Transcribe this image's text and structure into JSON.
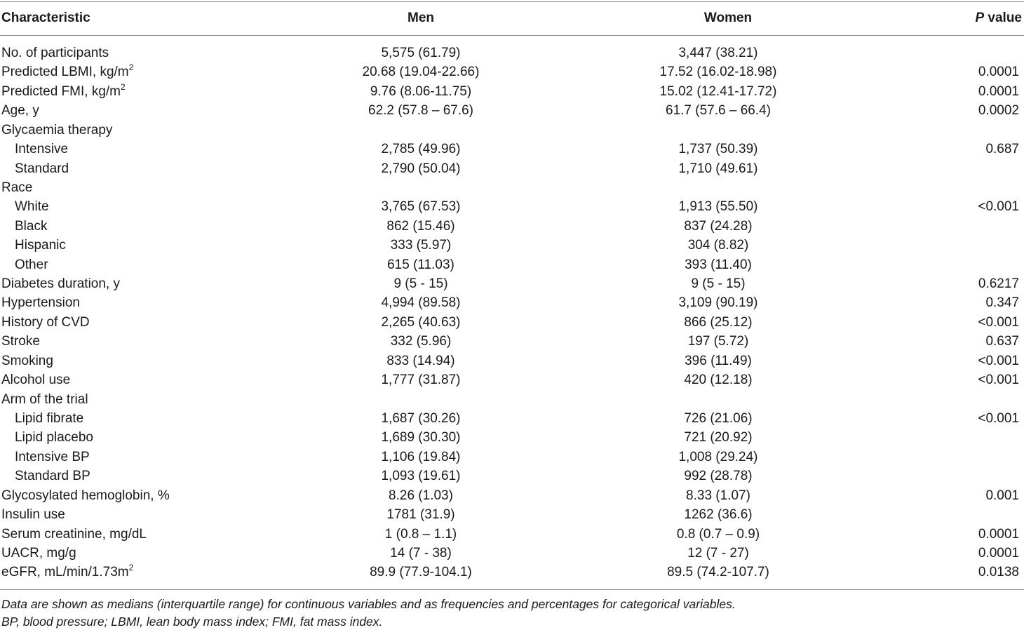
{
  "header": {
    "characteristic": "Characteristic",
    "men": "Men",
    "women": "Women",
    "p_italic": "P",
    "p_rest": " value"
  },
  "rows": [
    {
      "label": "No. of participants",
      "sup": "",
      "indent": false,
      "men": "5,575 (61.79)",
      "women": "3,447 (38.21)",
      "p": ""
    },
    {
      "label": "Predicted LBMI, kg/m",
      "sup": "2",
      "indent": false,
      "men": "20.68 (19.04-22.66)",
      "women": "17.52 (16.02-18.98)",
      "p": "0.0001"
    },
    {
      "label": "Predicted FMI, kg/m",
      "sup": "2",
      "indent": false,
      "men": "9.76 (8.06-11.75)",
      "women": "15.02 (12.41-17.72)",
      "p": "0.0001"
    },
    {
      "label": "Age, y",
      "sup": "",
      "indent": false,
      "men": "62.2 (57.8 – 67.6)",
      "women": "61.7 (57.6 – 66.4)",
      "p": "0.0002"
    },
    {
      "label": "Glycaemia therapy",
      "sup": "",
      "indent": false,
      "men": "",
      "women": "",
      "p": ""
    },
    {
      "label": "Intensive",
      "sup": "",
      "indent": true,
      "men": "2,785 (49.96)",
      "women": "1,737 (50.39)",
      "p": "0.687"
    },
    {
      "label": "Standard",
      "sup": "",
      "indent": true,
      "men": "2,790 (50.04)",
      "women": "1,710 (49.61)",
      "p": ""
    },
    {
      "label": "Race",
      "sup": "",
      "indent": false,
      "men": "",
      "women": "",
      "p": ""
    },
    {
      "label": "White",
      "sup": "",
      "indent": true,
      "men": "3,765 (67.53)",
      "women": "1,913 (55.50)",
      "p": "<0.001"
    },
    {
      "label": "Black",
      "sup": "",
      "indent": true,
      "men": "862 (15.46)",
      "women": "837 (24.28)",
      "p": ""
    },
    {
      "label": "Hispanic",
      "sup": "",
      "indent": true,
      "men": "333 (5.97)",
      "women": "304 (8.82)",
      "p": ""
    },
    {
      "label": "Other",
      "sup": "",
      "indent": true,
      "men": "615 (11.03)",
      "women": "393 (11.40)",
      "p": ""
    },
    {
      "label": "Diabetes duration, y",
      "sup": "",
      "indent": false,
      "men": "9 (5 - 15)",
      "women": "9 (5 - 15)",
      "p": "0.6217"
    },
    {
      "label": "Hypertension",
      "sup": "",
      "indent": false,
      "men": "4,994 (89.58)",
      "women": "3,109 (90.19)",
      "p": "0.347"
    },
    {
      "label": "History of CVD",
      "sup": "",
      "indent": false,
      "men": "2,265 (40.63)",
      "women": "866 (25.12)",
      "p": "<0.001"
    },
    {
      "label": "Stroke",
      "sup": "",
      "indent": false,
      "men": "332 (5.96)",
      "women": "197 (5.72)",
      "p": "0.637"
    },
    {
      "label": "Smoking",
      "sup": "",
      "indent": false,
      "men": "833 (14.94)",
      "women": "396 (11.49)",
      "p": "<0.001"
    },
    {
      "label": "Alcohol use",
      "sup": "",
      "indent": false,
      "men": "1,777 (31.87)",
      "women": "420 (12.18)",
      "p": "<0.001"
    },
    {
      "label": "Arm of the trial",
      "sup": "",
      "indent": false,
      "men": "",
      "women": "",
      "p": ""
    },
    {
      "label": "Lipid fibrate",
      "sup": "",
      "indent": true,
      "men": "1,687 (30.26)",
      "women": "726 (21.06)",
      "p": "<0.001"
    },
    {
      "label": "Lipid placebo",
      "sup": "",
      "indent": true,
      "men": "1,689 (30.30)",
      "women": "721 (20.92)",
      "p": ""
    },
    {
      "label": "Intensive BP",
      "sup": "",
      "indent": true,
      "men": "1,106 (19.84)",
      "women": "1,008 (29.24)",
      "p": ""
    },
    {
      "label": "Standard BP",
      "sup": "",
      "indent": true,
      "men": "1,093 (19.61)",
      "women": "992 (28.78)",
      "p": ""
    },
    {
      "label": "Glycosylated hemoglobin, %",
      "sup": "",
      "indent": false,
      "men": "8.26 (1.03)",
      "women": "8.33 (1.07)",
      "p": "0.001"
    },
    {
      "label": "Insulin use",
      "sup": "",
      "indent": false,
      "men": "1781 (31.9)",
      "women": "1262 (36.6)",
      "p": ""
    },
    {
      "label": "Serum creatinine, mg/dL",
      "sup": "",
      "indent": false,
      "men": "1 (0.8 – 1.1)",
      "women": "0.8 (0.7 – 0.9)",
      "p": "0.0001"
    },
    {
      "label": "UACR, mg/g",
      "sup": "",
      "indent": false,
      "men": "14 (7 - 38)",
      "women": "12 (7 - 27)",
      "p": "0.0001"
    },
    {
      "label": "eGFR, mL/min/1.73m",
      "sup": "2",
      "indent": false,
      "men": "89.9 (77.9-104.1)",
      "women": "89.5 (74.2-107.7)",
      "p": "0.0138"
    }
  ],
  "footnotes": [
    "Data are shown as medians (interquartile range) for continuous variables and as frequencies and percentages for categorical variables.",
    "BP, blood pressure; LBMI, lean body mass index; FMI, fat mass index."
  ]
}
